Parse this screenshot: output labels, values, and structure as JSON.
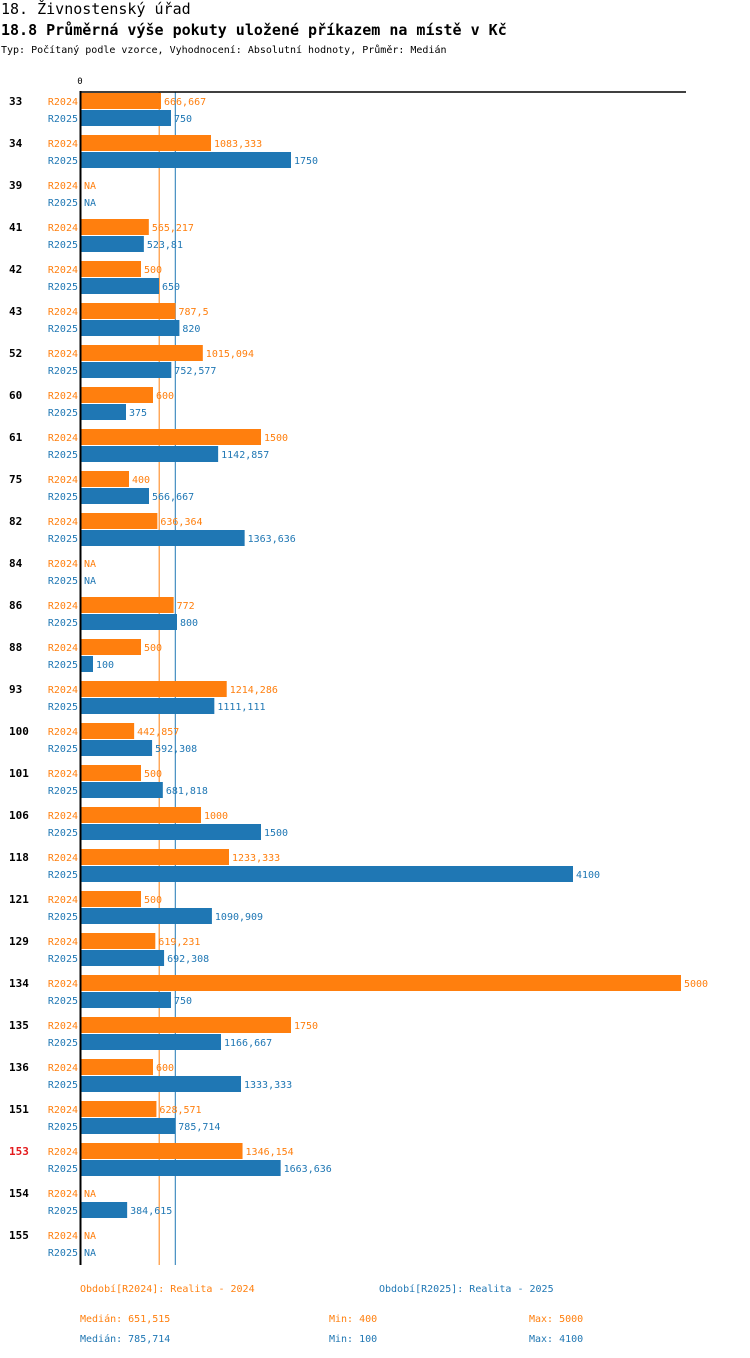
{
  "header": {
    "section_title": "18. Živnostenský úřad",
    "chart_title": "18.8 Průměrná výše pokuty uložené příkazem na místě v Kč",
    "subtitle": "Typ: Počítaný podle vzorce, Vyhodnocení: Absolutní hodnoty, Průměr: Medián"
  },
  "colors": {
    "R2024": "#ff7f0e",
    "R2025": "#1f77b4",
    "highlight_category": "#e41a1c",
    "axis": "#000000"
  },
  "chart_data": {
    "type": "bar",
    "orientation": "horizontal",
    "title": "18.8 Průměrná výše pokuty uložené příkazem na místě v Kč",
    "xlabel": "",
    "ylabel": "",
    "x_tick_labels": [
      "0"
    ],
    "xlim": [
      0,
      5000
    ],
    "grid": false,
    "highlighted_category": "153",
    "categories": [
      "33",
      "34",
      "39",
      "41",
      "42",
      "43",
      "52",
      "60",
      "61",
      "75",
      "82",
      "84",
      "86",
      "88",
      "93",
      "100",
      "101",
      "106",
      "118",
      "121",
      "129",
      "134",
      "135",
      "136",
      "151",
      "153",
      "154",
      "155"
    ],
    "series": [
      {
        "name": "R2024",
        "label": "Období[R2024]: Realita - 2024",
        "values": [
          666.667,
          1083.333,
          null,
          565.217,
          500,
          787.5,
          1015.094,
          600,
          1500,
          400,
          636.364,
          null,
          772,
          500,
          1214.286,
          442.857,
          500,
          1000,
          1233.333,
          500,
          619.231,
          5000,
          1750,
          600,
          628.571,
          1346.154,
          null,
          null
        ],
        "value_labels": [
          "666,667",
          "1083,333",
          "NA",
          "565,217",
          "500",
          "787,5",
          "1015,094",
          "600",
          "1500",
          "400",
          "636,364",
          "NA",
          "772",
          "500",
          "1214,286",
          "442,857",
          "500",
          "1000",
          "1233,333",
          "500",
          "619,231",
          "5000",
          "1750",
          "600",
          "628,571",
          "1346,154",
          "NA",
          "NA"
        ],
        "median": 651.515,
        "median_label": "Medián: 651,515",
        "min_label": "Min: 400",
        "max_label": "Max: 5000"
      },
      {
        "name": "R2025",
        "label": "Období[R2025]: Realita - 2025",
        "values": [
          750,
          1750,
          null,
          523.81,
          650,
          820,
          752.577,
          375,
          1142.857,
          566.667,
          1363.636,
          null,
          800,
          100,
          1111.111,
          592.308,
          681.818,
          1500,
          4100,
          1090.909,
          692.308,
          750,
          1166.667,
          1333.333,
          785.714,
          1663.636,
          384.615,
          null
        ],
        "value_labels": [
          "750",
          "1750",
          "NA",
          "523,81",
          "650",
          "820",
          "752,577",
          "375",
          "1142,857",
          "566,667",
          "1363,636",
          "NA",
          "800",
          "100",
          "1111,111",
          "592,308",
          "681,818",
          "1500",
          "4100",
          "1090,909",
          "692,308",
          "750",
          "1166,667",
          "1333,333",
          "785,714",
          "1663,636",
          "384,615",
          "NA"
        ],
        "median": 785.714,
        "median_label": "Medián: 785,714",
        "min_label": "Min: 100",
        "max_label": "Max: 4100"
      }
    ]
  }
}
